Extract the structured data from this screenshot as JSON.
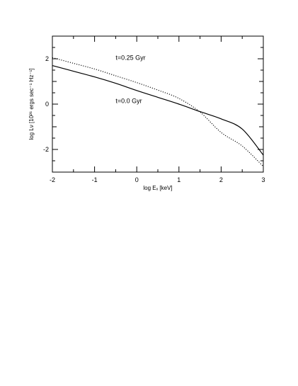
{
  "chart_data": {
    "type": "line",
    "title": "",
    "xlabel": "log Eₓ [keV]",
    "ylabel": "log Lν [10²⁶ ergs sec⁻¹ Hz⁻¹]",
    "xlim": [
      -2,
      3
    ],
    "ylim": [
      -3,
      3
    ],
    "xticks": [
      -2,
      -1,
      0,
      1,
      2,
      3
    ],
    "xtick_labels": [
      "-2",
      "-1",
      "0",
      "1",
      "2",
      "3"
    ],
    "yticks": [
      -2,
      0,
      2
    ],
    "ytick_labels": [
      "-2",
      "0",
      "2"
    ],
    "grid": false,
    "legend": "none",
    "series": [
      {
        "name": "t=0.0 Gyr",
        "style": "solid",
        "color": "#000000",
        "x": [
          -2.0,
          -1.5,
          -1.0,
          -0.5,
          0.0,
          0.5,
          1.0,
          1.5,
          2.0,
          2.5,
          3.0
        ],
        "y": [
          1.7,
          1.45,
          1.2,
          0.92,
          0.6,
          0.3,
          0.0,
          -0.33,
          -0.65,
          -1.1,
          -2.25
        ]
      },
      {
        "name": "t=0.25 Gyr",
        "style": "dotted",
        "color": "#000000",
        "x": [
          -2.0,
          -1.5,
          -1.0,
          -0.5,
          0.0,
          0.5,
          1.0,
          1.5,
          2.0,
          2.5,
          3.0
        ],
        "y": [
          2.05,
          1.8,
          1.55,
          1.25,
          0.95,
          0.62,
          0.25,
          -0.35,
          -1.25,
          -1.85,
          -2.75
        ]
      }
    ],
    "annotations": [
      {
        "text": "t=0.25 Gyr",
        "x": -0.5,
        "y": 1.95
      },
      {
        "text": "t=0.0 Gyr",
        "x": -0.5,
        "y": 0.05
      }
    ]
  }
}
